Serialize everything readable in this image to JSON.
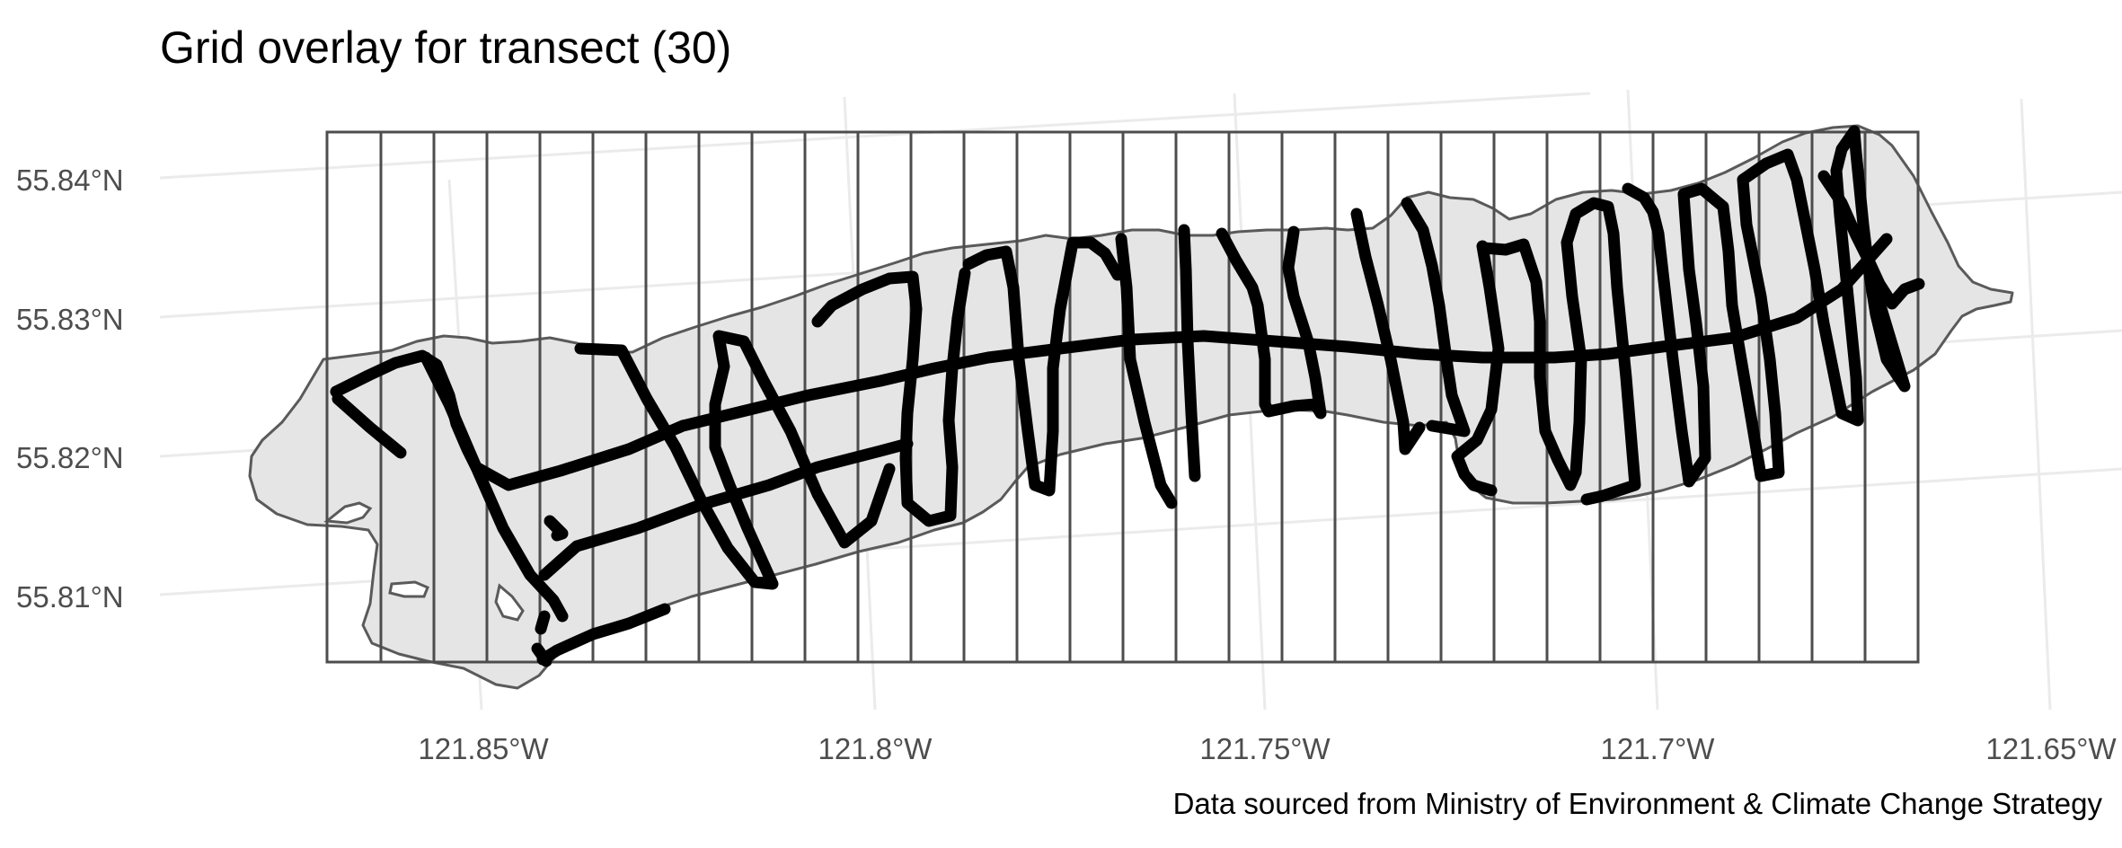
{
  "map": {
    "title": "Grid overlay for transect (30)",
    "caption": "Data sourced from Ministry of Environment & Climate Change Strategy",
    "lat_labels": [
      "55.84°N",
      "55.83°N",
      "55.82°N",
      "55.81°N"
    ],
    "lon_labels": [
      "121.85°W",
      "121.8°W",
      "121.75°W",
      "121.7°W",
      "121.65°W"
    ],
    "grid": {
      "columns": 30
    },
    "colors": {
      "lake_fill": "#e5e5e5",
      "lake_outline": "#5a5a5a",
      "grid_lines": "#4d4d4d",
      "transect": "#000000",
      "graticule": "#ebebeb"
    }
  }
}
